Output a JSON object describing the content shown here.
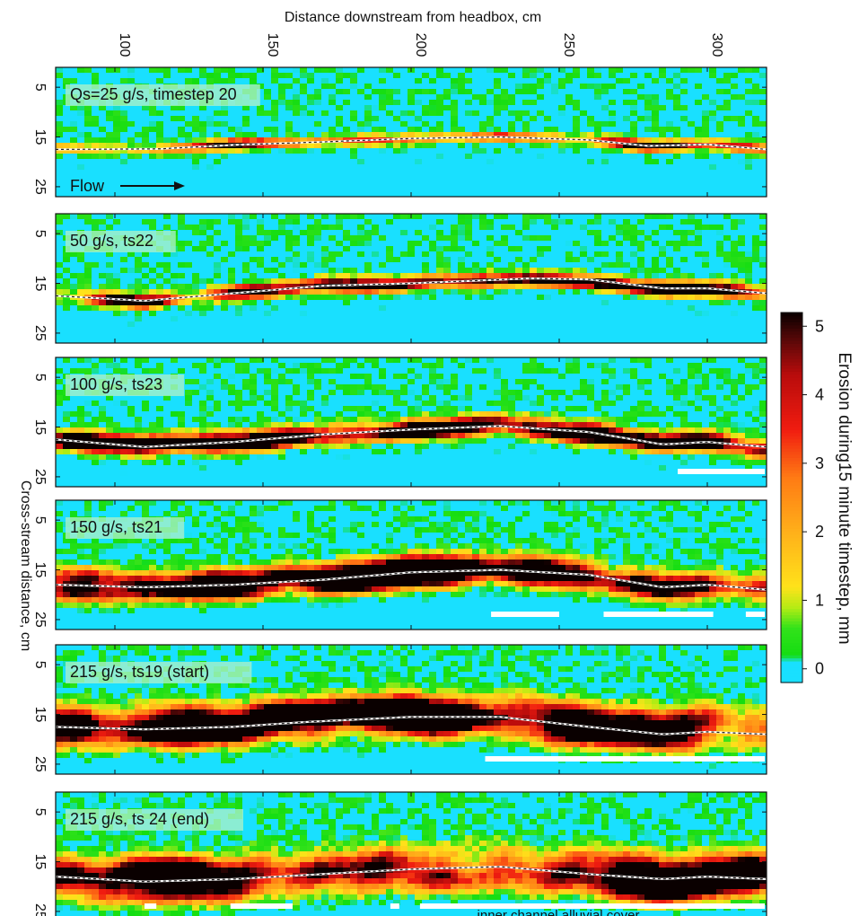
{
  "chart_data": {
    "type": "heatmap",
    "xlabel": "Distance downstream from headbox, cm",
    "ylabel": "Cross-stream distance, cm",
    "x_ticks": [
      100,
      150,
      200,
      250,
      300
    ],
    "xlim": [
      80,
      320
    ],
    "y_ticks": [
      5,
      15,
      25
    ],
    "ylim": [
      1,
      27
    ],
    "colorbar": {
      "label": "Erosion during15 minute timestep, mm",
      "ticks": [
        0,
        1,
        2,
        3,
        4,
        5
      ],
      "range": [
        -0.2,
        5.2
      ],
      "stops": [
        {
          "v": -0.2,
          "color": "#19e0ff"
        },
        {
          "v": 0.1,
          "color": "#19e0ff"
        },
        {
          "v": 0.2,
          "color": "#14dd12"
        },
        {
          "v": 0.6,
          "color": "#32e21a"
        },
        {
          "v": 0.9,
          "color": "#b4ec14"
        },
        {
          "v": 1.2,
          "color": "#ffe21a"
        },
        {
          "v": 2.0,
          "color": "#ffb01a"
        },
        {
          "v": 2.8,
          "color": "#ff7a14"
        },
        {
          "v": 3.5,
          "color": "#f01c10"
        },
        {
          "v": 4.3,
          "color": "#b80c0c"
        },
        {
          "v": 4.8,
          "color": "#5a0808"
        },
        {
          "v": 5.2,
          "color": "#0a0000"
        }
      ]
    },
    "panels": [
      {
        "label": "Qs=25 g/s, timestep 20",
        "flow_label": "Flow",
        "thalweg_y": [
          [
            80,
            17.5
          ],
          [
            115,
            17.4
          ],
          [
            140,
            16.6
          ],
          [
            170,
            16.0
          ],
          [
            200,
            15.3
          ],
          [
            230,
            15.0
          ],
          [
            260,
            15.6
          ],
          [
            280,
            16.8
          ],
          [
            300,
            16.5
          ],
          [
            320,
            17.5
          ]
        ],
        "intensity": 1.1,
        "spread": 1.2,
        "bars": []
      },
      {
        "label": "50 g/s, ts22",
        "thalweg_y": [
          [
            80,
            17.5
          ],
          [
            110,
            18.5
          ],
          [
            140,
            17.0
          ],
          [
            170,
            15.5
          ],
          [
            200,
            15.0
          ],
          [
            240,
            14.0
          ],
          [
            260,
            14.2
          ],
          [
            285,
            16.0
          ],
          [
            300,
            16.0
          ],
          [
            320,
            17.0
          ]
        ],
        "intensity": 2.0,
        "spread": 1.6,
        "bars": []
      },
      {
        "label": "100 g/s, ts23",
        "thalweg_y": [
          [
            80,
            17.5
          ],
          [
            110,
            19.0
          ],
          [
            140,
            18.0
          ],
          [
            170,
            16.5
          ],
          [
            200,
            15.5
          ],
          [
            230,
            14.8
          ],
          [
            260,
            16.0
          ],
          [
            285,
            18.5
          ],
          [
            300,
            18.0
          ],
          [
            320,
            19.0
          ]
        ],
        "intensity": 2.6,
        "spread": 2.2,
        "bars": [
          [
            290,
            322
          ],
          [
            336,
            342
          ]
        ]
      },
      {
        "label": "150 g/s, ts21",
        "thalweg_y": [
          [
            80,
            18.0
          ],
          [
            110,
            18.5
          ],
          [
            140,
            18.0
          ],
          [
            170,
            17.0
          ],
          [
            200,
            15.5
          ],
          [
            230,
            15.0
          ],
          [
            260,
            16.0
          ],
          [
            285,
            18.5
          ],
          [
            300,
            18.0
          ],
          [
            320,
            19.0
          ]
        ],
        "intensity": 3.0,
        "spread": 3.0,
        "bars": [
          [
            227,
            250
          ],
          [
            265,
            302
          ],
          [
            313,
            322
          ]
        ]
      },
      {
        "label": "215 g/s, ts19 (start)",
        "thalweg_y": [
          [
            80,
            17.5
          ],
          [
            110,
            18.0
          ],
          [
            140,
            17.5
          ],
          [
            165,
            16.5
          ],
          [
            200,
            15.5
          ],
          [
            230,
            15.5
          ],
          [
            260,
            17.5
          ],
          [
            285,
            19.0
          ],
          [
            300,
            18.5
          ],
          [
            320,
            19.0
          ]
        ],
        "intensity": 3.4,
        "spread": 4.2,
        "bars": [
          [
            225,
            322
          ]
        ]
      },
      {
        "label": "215 g/s, ts 24 (end)",
        "thalweg_y": [
          [
            80,
            18.0
          ],
          [
            110,
            19.0
          ],
          [
            140,
            18.5
          ],
          [
            170,
            17.5
          ],
          [
            200,
            16.5
          ],
          [
            230,
            16.0
          ],
          [
            260,
            17.5
          ],
          [
            285,
            18.5
          ],
          [
            300,
            18.0
          ],
          [
            320,
            18.5
          ]
        ],
        "intensity": 3.0,
        "spread": 4.5,
        "bars": [
          [
            110,
            114
          ],
          [
            139,
            160
          ],
          [
            193,
            196
          ],
          [
            203,
            322
          ]
        ],
        "annotation": "inner channel alluvial cover"
      }
    ]
  }
}
